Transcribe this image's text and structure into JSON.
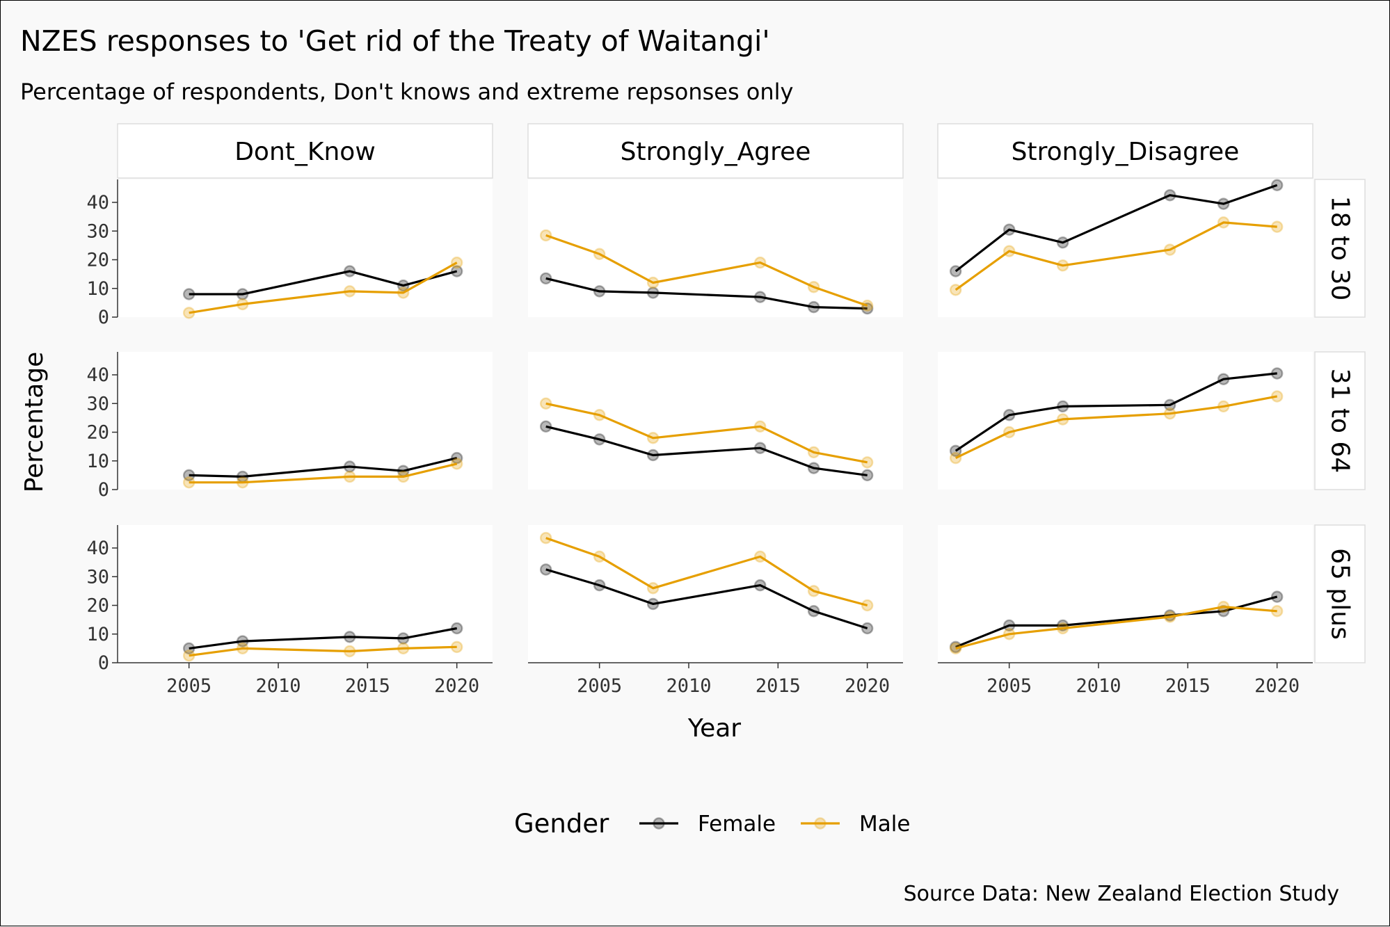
{
  "chart_data": {
    "type": "line",
    "title": "NZES responses to 'Get rid of the Treaty of Waitangi'",
    "subtitle": "Percentage of respondents, Don't knows and extreme repsonses only",
    "xlabel": "Year",
    "ylabel": "Percentage",
    "caption": "Source Data: New Zealand Election Study",
    "x_ticks": [
      2005,
      2010,
      2015,
      2020
    ],
    "y_ticks": [
      0,
      10,
      20,
      30,
      40
    ],
    "xlim": [
      2001,
      2022
    ],
    "ylim": [
      0,
      48
    ],
    "columns": [
      "Dont_Know",
      "Strongly_Agree",
      "Strongly_Disagree"
    ],
    "rows": [
      "18 to 30",
      "31 to 64",
      "65 plus"
    ],
    "legend": {
      "title": "Gender",
      "position": "bottom",
      "entries": [
        {
          "label": "Female",
          "color": "#000000"
        },
        {
          "label": "Male",
          "color": "#E69F00"
        }
      ]
    },
    "panels": [
      {
        "column": "Dont_Know",
        "row": "18 to 30",
        "series": [
          {
            "gender": "Female",
            "x": [
              2005,
              2008,
              2014,
              2017,
              2020
            ],
            "y": [
              8,
              8,
              16,
              11,
              16
            ]
          },
          {
            "gender": "Male",
            "x": [
              2005,
              2008,
              2014,
              2017,
              2020
            ],
            "y": [
              1.5,
              4.5,
              9,
              8.5,
              19
            ]
          }
        ]
      },
      {
        "column": "Strongly_Agree",
        "row": "18 to 30",
        "series": [
          {
            "gender": "Female",
            "x": [
              2002,
              2005,
              2008,
              2014,
              2017,
              2020
            ],
            "y": [
              13.5,
              9,
              8.5,
              7,
              3.5,
              3
            ]
          },
          {
            "gender": "Male",
            "x": [
              2002,
              2005,
              2008,
              2014,
              2017,
              2020
            ],
            "y": [
              28.5,
              22,
              12,
              19,
              10.5,
              4
            ]
          }
        ]
      },
      {
        "column": "Strongly_Disagree",
        "row": "18 to 30",
        "series": [
          {
            "gender": "Female",
            "x": [
              2002,
              2005,
              2008,
              2014,
              2017,
              2020
            ],
            "y": [
              16,
              30.5,
              26,
              42.5,
              39.5,
              46
            ]
          },
          {
            "gender": "Male",
            "x": [
              2002,
              2005,
              2008,
              2014,
              2017,
              2020
            ],
            "y": [
              9.5,
              23,
              18,
              23.5,
              33,
              31.5
            ]
          }
        ]
      },
      {
        "column": "Dont_Know",
        "row": "31 to 64",
        "series": [
          {
            "gender": "Female",
            "x": [
              2005,
              2008,
              2014,
              2017,
              2020
            ],
            "y": [
              5,
              4.5,
              8,
              6.5,
              11
            ]
          },
          {
            "gender": "Male",
            "x": [
              2005,
              2008,
              2014,
              2017,
              2020
            ],
            "y": [
              2.5,
              2.5,
              4.5,
              4.5,
              9
            ]
          }
        ]
      },
      {
        "column": "Strongly_Agree",
        "row": "31 to 64",
        "series": [
          {
            "gender": "Female",
            "x": [
              2002,
              2005,
              2008,
              2014,
              2017,
              2020
            ],
            "y": [
              22,
              17.5,
              12,
              14.5,
              7.5,
              5
            ]
          },
          {
            "gender": "Male",
            "x": [
              2002,
              2005,
              2008,
              2014,
              2017,
              2020
            ],
            "y": [
              30,
              26,
              18,
              22,
              13,
              9.5
            ]
          }
        ]
      },
      {
        "column": "Strongly_Disagree",
        "row": "31 to 64",
        "series": [
          {
            "gender": "Female",
            "x": [
              2002,
              2005,
              2008,
              2014,
              2017,
              2020
            ],
            "y": [
              13.5,
              26,
              29,
              29.5,
              38.5,
              40.5
            ]
          },
          {
            "gender": "Male",
            "x": [
              2002,
              2005,
              2008,
              2014,
              2017,
              2020
            ],
            "y": [
              11,
              20,
              24.5,
              26.5,
              29,
              32.5
            ]
          }
        ]
      },
      {
        "column": "Dont_Know",
        "row": "65 plus",
        "series": [
          {
            "gender": "Female",
            "x": [
              2005,
              2008,
              2014,
              2017,
              2020
            ],
            "y": [
              5,
              7.5,
              9,
              8.5,
              12
            ]
          },
          {
            "gender": "Male",
            "x": [
              2005,
              2008,
              2014,
              2017,
              2020
            ],
            "y": [
              2.5,
              5,
              4,
              5,
              5.5
            ]
          }
        ]
      },
      {
        "column": "Strongly_Agree",
        "row": "65 plus",
        "series": [
          {
            "gender": "Female",
            "x": [
              2002,
              2005,
              2008,
              2014,
              2017,
              2020
            ],
            "y": [
              32.5,
              27,
              20.5,
              27,
              18,
              12
            ]
          },
          {
            "gender": "Male",
            "x": [
              2002,
              2005,
              2008,
              2014,
              2017,
              2020
            ],
            "y": [
              43.5,
              37,
              26,
              37,
              25,
              20
            ]
          }
        ]
      },
      {
        "column": "Strongly_Disagree",
        "row": "65 plus",
        "series": [
          {
            "gender": "Female",
            "x": [
              2002,
              2005,
              2008,
              2014,
              2017,
              2020
            ],
            "y": [
              5.5,
              13,
              13,
              16.5,
              18,
              23
            ]
          },
          {
            "gender": "Male",
            "x": [
              2002,
              2005,
              2008,
              2014,
              2017,
              2020
            ],
            "y": [
              5,
              10,
              12,
              16,
              19.5,
              18
            ]
          }
        ]
      }
    ]
  }
}
